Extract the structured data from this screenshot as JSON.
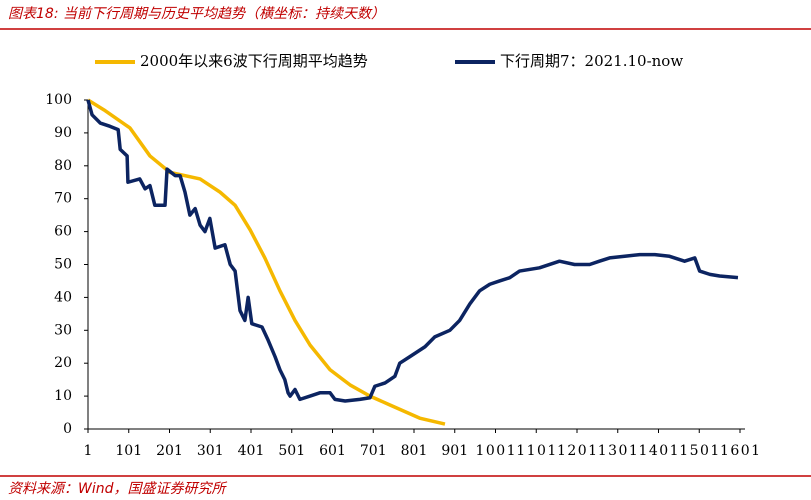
{
  "chart_data": {
    "type": "line",
    "title": "图表18: 当前下行周期与历史平均趋势（横坐标：持续天数）",
    "source": "资料来源：Wind，国盛证券研究所",
    "xlim": [
      1,
      1601
    ],
    "ylim": [
      0,
      100
    ],
    "xticks": [
      1,
      101,
      201,
      301,
      401,
      501,
      601,
      701,
      801,
      901,
      1001,
      1101,
      1201,
      1301,
      1401,
      1501,
      1601
    ],
    "yticks": [
      0,
      10,
      20,
      30,
      40,
      50,
      60,
      70,
      80,
      90,
      100
    ],
    "series": [
      {
        "name": "2000年以来6波下行周期平均趋势",
        "color": "#f5b800",
        "x": [
          1,
          40,
          104,
          153,
          202,
          276,
          325,
          362,
          399,
          435,
          472,
          509,
          546,
          595,
          644,
          693,
          742,
          815,
          877
        ],
        "values": [
          100,
          97,
          91.5,
          83,
          78,
          76,
          72,
          68,
          60.5,
          52,
          42,
          33,
          25.5,
          18,
          13.4,
          10,
          7.3,
          3.3,
          1.5
        ]
      },
      {
        "name": "下行周期7：2021.10-now",
        "color": "#0c2461",
        "x": [
          1,
          11,
          31,
          55,
          75,
          80,
          97,
          99,
          128,
          141,
          153,
          165,
          190,
          195,
          215,
          227,
          239,
          251,
          264,
          276,
          288,
          300,
          313,
          337,
          350,
          362,
          374,
          386,
          394,
          403,
          428,
          443,
          460,
          472,
          484,
          492,
          497,
          509,
          521,
          546,
          570,
          595,
          607,
          632,
          668,
          693,
          705,
          730,
          754,
          766,
          791,
          828,
          852,
          889,
          913,
          938,
          962,
          987,
          1011,
          1036,
          1060,
          1109,
          1158,
          1195,
          1232,
          1256,
          1281,
          1318,
          1355,
          1392,
          1428,
          1465,
          1490,
          1502,
          1527,
          1551,
          1596
        ],
        "values": [
          100,
          95.5,
          93,
          92,
          91,
          85,
          83,
          75,
          76,
          73,
          74,
          68,
          68,
          79,
          77,
          77,
          72,
          65,
          67,
          62,
          60,
          64,
          55,
          56,
          50,
          48,
          36,
          33,
          40,
          32,
          31,
          27,
          22,
          18,
          15,
          11,
          10,
          12,
          9,
          10,
          11,
          11,
          9,
          8.5,
          9,
          9.5,
          13,
          14,
          16,
          20,
          22,
          25,
          28,
          30,
          33,
          38,
          42,
          44,
          45,
          46,
          48,
          49,
          51,
          50,
          50,
          51,
          52,
          52.5,
          53,
          53,
          52.5,
          51,
          52,
          48,
          47,
          46.5,
          46
        ]
      }
    ]
  }
}
